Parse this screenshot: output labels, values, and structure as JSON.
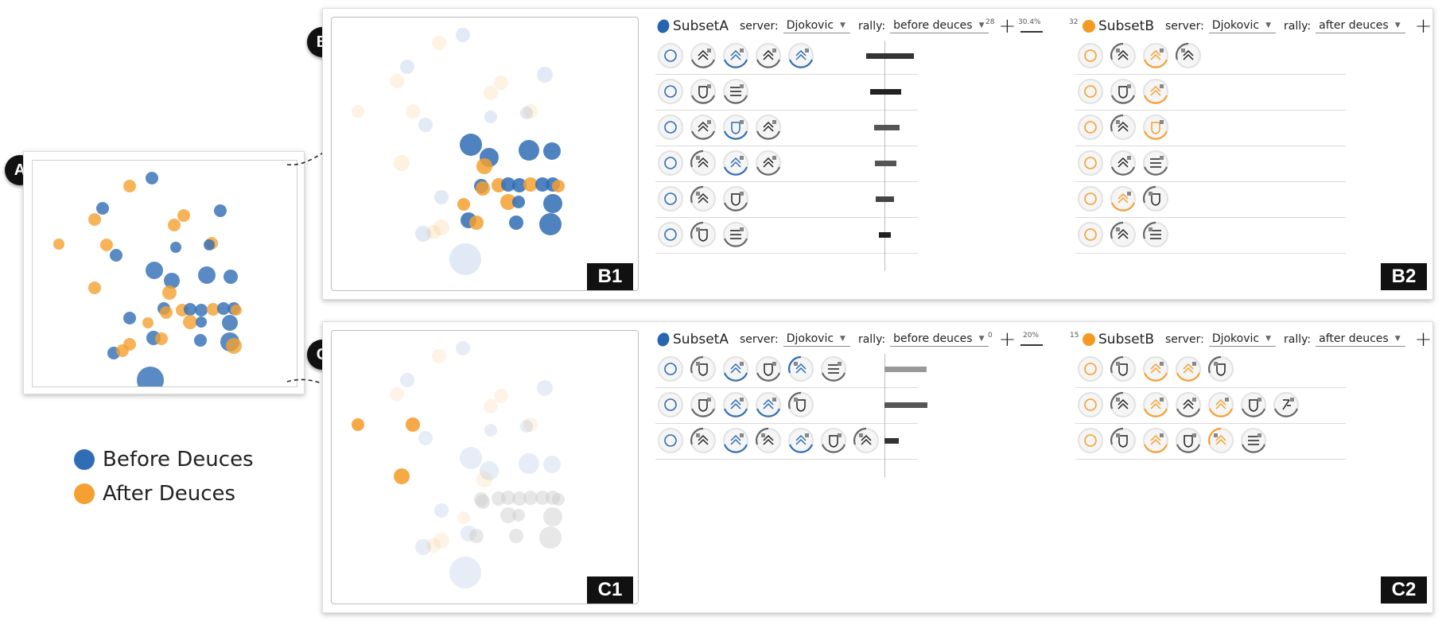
{
  "badges": {
    "a": "A",
    "b": "B",
    "c": "C"
  },
  "legend": [
    {
      "label": "Before Deuces",
      "color": "#2f6db5"
    },
    {
      "label": "After Deuces",
      "color": "#f5a030"
    }
  ],
  "colors": {
    "blue": "#2f6db5",
    "orange": "#f5a030",
    "dark": "#111111"
  },
  "panel_b": {
    "plot_label": "B1",
    "table_label": "B2",
    "subset_a": {
      "title": "SubsetA",
      "server_label": "server:",
      "server_value": "Djokovic",
      "rally_label": "rally:",
      "rally_value": "before deuces"
    },
    "subset_b": {
      "title": "SubsetB",
      "server_label": "server:",
      "server_value": "Djokovic",
      "rally_label": "rally:",
      "rally_value": "after deuces"
    },
    "axis": {
      "left": "28",
      "mid": "30.4%",
      "right": "32"
    },
    "rows_a": [
      [
        "circle",
        "up-right",
        "up-blue",
        "up-right",
        "up-blue"
      ],
      [
        "circle",
        "shield",
        "lines"
      ],
      [
        "circle",
        "up-right",
        "shield-blue",
        "up-right"
      ],
      [
        "circle",
        "up-left",
        "up-blue",
        "up-right"
      ],
      [
        "circle",
        "up-left",
        "shield"
      ],
      [
        "circle",
        "shield-left",
        "lines"
      ]
    ],
    "rows_b": [
      [
        "circle",
        "up-left",
        "up-orange",
        "up-left"
      ],
      [
        "circle",
        "shield",
        "up-orange"
      ],
      [
        "circle",
        "up-left",
        "shield-orange"
      ],
      [
        "circle",
        "up-right",
        "lines"
      ],
      [
        "circle",
        "up-orange",
        "shield-left"
      ],
      [
        "circle",
        "up-left",
        "lines-left"
      ]
    ],
    "bars": [
      {
        "left": 0.38,
        "right": 0.62,
        "shade": "#333"
      },
      {
        "left": 0.3,
        "right": 0.35,
        "shade": "#222"
      },
      {
        "left": 0.22,
        "right": 0.31,
        "shade": "#555"
      },
      {
        "left": 0.2,
        "right": 0.25,
        "shade": "#555"
      },
      {
        "left": 0.18,
        "right": 0.2,
        "shade": "#444"
      },
      {
        "left": 0.11,
        "right": 0.13,
        "shade": "#222"
      }
    ]
  },
  "panel_c": {
    "plot_label": "C1",
    "table_label": "C2",
    "subset_a": {
      "title": "SubsetA",
      "server_label": "server:",
      "server_value": "Djokovic",
      "rally_label": "rally:",
      "rally_value": "before deuces"
    },
    "subset_b": {
      "title": "SubsetB",
      "server_label": "server:",
      "server_value": "Djokovic",
      "rally_label": "rally:",
      "rally_value": "after deuces"
    },
    "axis": {
      "left": "0",
      "mid": "20%",
      "right": "15"
    },
    "rows_a": [
      [
        "circle",
        "shield-left",
        "up-blue",
        "shield",
        "up-blue-left",
        "lines"
      ],
      [
        "circle",
        "shield",
        "up-blue",
        "up-blue",
        "shield-left"
      ],
      [
        "circle",
        "up-left",
        "up-blue",
        "up-left",
        "up-blue",
        "shield",
        "up-left"
      ]
    ],
    "rows_b": [
      [
        "circle",
        "shield-left",
        "up-orange",
        "up-orange",
        "shield-left"
      ],
      [
        "circle",
        "up-left",
        "up-orange",
        "up-right",
        "up-orange",
        "shield",
        "slash"
      ],
      [
        "circle",
        "shield-left",
        "up-orange",
        "shield",
        "up-orange-left",
        "lines"
      ]
    ],
    "bars": [
      {
        "left": 0.0,
        "right": 0.88,
        "shade": "#999"
      },
      {
        "left": 0.0,
        "right": 0.9,
        "shade": "#555"
      },
      {
        "left": 0.0,
        "right": 0.3,
        "shade": "#333"
      }
    ]
  }
}
